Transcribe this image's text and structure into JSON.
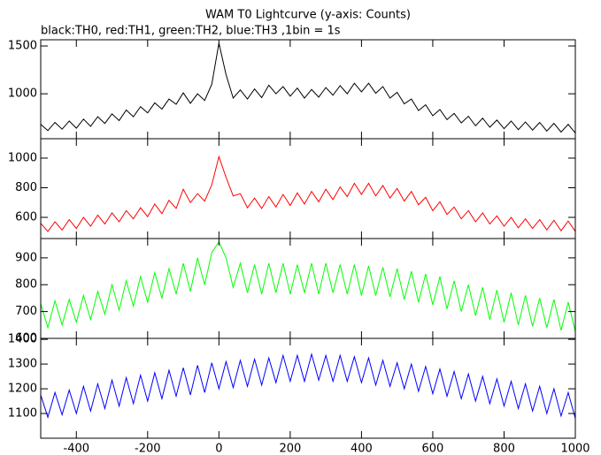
{
  "chart_data": [
    {
      "type": "line",
      "title": "WAM T0 Lightcurve (y-axis: Counts)",
      "subtitle": "black:TH0, red:TH1, green:TH2, blue:TH3 ,1bin = 1s",
      "color": "#000000",
      "x": [
        -500,
        -480,
        -460,
        -440,
        -420,
        -400,
        -380,
        -360,
        -340,
        -320,
        -300,
        -280,
        -260,
        -240,
        -220,
        -200,
        -180,
        -160,
        -140,
        -120,
        -100,
        -80,
        -60,
        -40,
        -20,
        0,
        20,
        40,
        60,
        80,
        100,
        120,
        140,
        160,
        180,
        200,
        220,
        240,
        260,
        280,
        300,
        320,
        340,
        360,
        380,
        400,
        420,
        440,
        460,
        480,
        500,
        520,
        540,
        560,
        580,
        600,
        620,
        640,
        660,
        680,
        700,
        720,
        740,
        760,
        780,
        800,
        820,
        840,
        860,
        880,
        900,
        920,
        940,
        960,
        980,
        1000
      ],
      "values": [
        680,
        615,
        700,
        630,
        715,
        640,
        735,
        660,
        760,
        690,
        790,
        720,
        830,
        760,
        865,
        800,
        905,
        840,
        945,
        890,
        1010,
        900,
        1000,
        930,
        1100,
        1530,
        1200,
        955,
        1040,
        945,
        1050,
        960,
        1090,
        1000,
        1075,
        975,
        1060,
        955,
        1045,
        965,
        1065,
        985,
        1085,
        1000,
        1110,
        1020,
        1110,
        1005,
        1075,
        955,
        1015,
        895,
        945,
        825,
        885,
        770,
        835,
        730,
        795,
        695,
        765,
        665,
        745,
        650,
        725,
        635,
        715,
        625,
        705,
        620,
        700,
        610,
        690,
        600,
        680,
        590
      ],
      "xlim": [
        -500,
        1000
      ],
      "ylim": [
        530,
        1565
      ],
      "yticks": [
        1000,
        1500
      ]
    },
    {
      "type": "line",
      "color": "#ff0000",
      "x": [
        -500,
        -480,
        -460,
        -440,
        -420,
        -400,
        -380,
        -360,
        -340,
        -320,
        -300,
        -280,
        -260,
        -240,
        -220,
        -200,
        -180,
        -160,
        -140,
        -120,
        -100,
        -80,
        -60,
        -40,
        -20,
        0,
        20,
        40,
        60,
        80,
        100,
        120,
        140,
        160,
        180,
        200,
        220,
        240,
        260,
        280,
        300,
        320,
        340,
        360,
        380,
        400,
        420,
        440,
        460,
        480,
        500,
        520,
        540,
        560,
        580,
        600,
        620,
        640,
        660,
        680,
        700,
        720,
        740,
        760,
        780,
        800,
        820,
        840,
        860,
        880,
        900,
        920,
        940,
        960,
        980,
        1000
      ],
      "values": [
        560,
        505,
        570,
        515,
        585,
        525,
        600,
        540,
        615,
        555,
        630,
        570,
        645,
        590,
        665,
        605,
        690,
        625,
        715,
        660,
        790,
        700,
        760,
        710,
        820,
        1010,
        870,
        745,
        760,
        665,
        730,
        660,
        740,
        670,
        755,
        680,
        765,
        690,
        775,
        705,
        790,
        720,
        805,
        740,
        830,
        755,
        830,
        745,
        815,
        730,
        795,
        710,
        775,
        685,
        735,
        645,
        705,
        620,
        670,
        590,
        645,
        570,
        630,
        555,
        610,
        540,
        600,
        530,
        590,
        525,
        585,
        515,
        580,
        510,
        575,
        505
      ],
      "xlim": [
        -500,
        1000
      ],
      "ylim": [
        457,
        1131
      ],
      "yticks": [
        600,
        800,
        1000
      ]
    },
    {
      "type": "line",
      "color": "#00ff00",
      "x": [
        -500,
        -480,
        -460,
        -440,
        -420,
        -400,
        -380,
        -360,
        -340,
        -320,
        -300,
        -280,
        -260,
        -240,
        -220,
        -200,
        -180,
        -160,
        -140,
        -120,
        -100,
        -80,
        -60,
        -40,
        -20,
        0,
        20,
        40,
        60,
        80,
        100,
        120,
        140,
        160,
        180,
        200,
        220,
        240,
        260,
        280,
        300,
        320,
        340,
        360,
        380,
        400,
        420,
        440,
        460,
        480,
        500,
        520,
        540,
        560,
        580,
        600,
        620,
        640,
        660,
        680,
        700,
        720,
        740,
        760,
        780,
        800,
        820,
        840,
        860,
        880,
        900,
        920,
        940,
        960,
        980,
        1000
      ],
      "values": [
        730,
        640,
        740,
        650,
        745,
        660,
        760,
        670,
        775,
        690,
        800,
        705,
        815,
        720,
        830,
        735,
        845,
        750,
        860,
        765,
        880,
        775,
        900,
        800,
        920,
        960,
        900,
        790,
        880,
        770,
        875,
        765,
        880,
        770,
        880,
        765,
        875,
        770,
        880,
        765,
        880,
        770,
        875,
        765,
        875,
        760,
        870,
        760,
        865,
        755,
        860,
        745,
        850,
        735,
        840,
        725,
        830,
        710,
        815,
        700,
        800,
        685,
        790,
        670,
        780,
        660,
        770,
        650,
        760,
        645,
        750,
        640,
        745,
        630,
        735,
        625
      ],
      "xlim": [
        -500,
        1000
      ],
      "ylim": [
        600,
        972
      ],
      "yticks": [
        600,
        700,
        800,
        900
      ]
    },
    {
      "type": "line",
      "color": "#0000ff",
      "x": [
        -500,
        -480,
        -460,
        -440,
        -420,
        -400,
        -380,
        -360,
        -340,
        -320,
        -300,
        -280,
        -260,
        -240,
        -220,
        -200,
        -180,
        -160,
        -140,
        -120,
        -100,
        -80,
        -60,
        -40,
        -20,
        0,
        20,
        40,
        60,
        80,
        100,
        120,
        140,
        160,
        180,
        200,
        220,
        240,
        260,
        280,
        300,
        320,
        340,
        360,
        380,
        400,
        420,
        440,
        460,
        480,
        500,
        520,
        540,
        560,
        580,
        600,
        620,
        640,
        660,
        680,
        700,
        720,
        740,
        760,
        780,
        800,
        820,
        840,
        860,
        880,
        900,
        920,
        940,
        960,
        980,
        1000
      ],
      "values": [
        1175,
        1085,
        1185,
        1095,
        1195,
        1100,
        1210,
        1110,
        1220,
        1120,
        1235,
        1130,
        1245,
        1140,
        1255,
        1150,
        1265,
        1160,
        1275,
        1170,
        1285,
        1175,
        1295,
        1185,
        1305,
        1200,
        1310,
        1205,
        1315,
        1210,
        1320,
        1215,
        1325,
        1225,
        1335,
        1230,
        1335,
        1230,
        1340,
        1235,
        1335,
        1230,
        1335,
        1230,
        1330,
        1225,
        1325,
        1215,
        1315,
        1210,
        1305,
        1200,
        1300,
        1190,
        1290,
        1180,
        1280,
        1170,
        1270,
        1160,
        1260,
        1150,
        1250,
        1140,
        1240,
        1130,
        1230,
        1120,
        1220,
        1110,
        1210,
        1100,
        1200,
        1090,
        1185,
        1080
      ],
      "xlim": [
        -500,
        1000
      ],
      "ylim": [
        1000,
        1404
      ],
      "yticks": [
        1100,
        1200,
        1300,
        1400
      ],
      "xticks": [
        -400,
        -200,
        0,
        200,
        400,
        600,
        800,
        1000
      ]
    }
  ]
}
